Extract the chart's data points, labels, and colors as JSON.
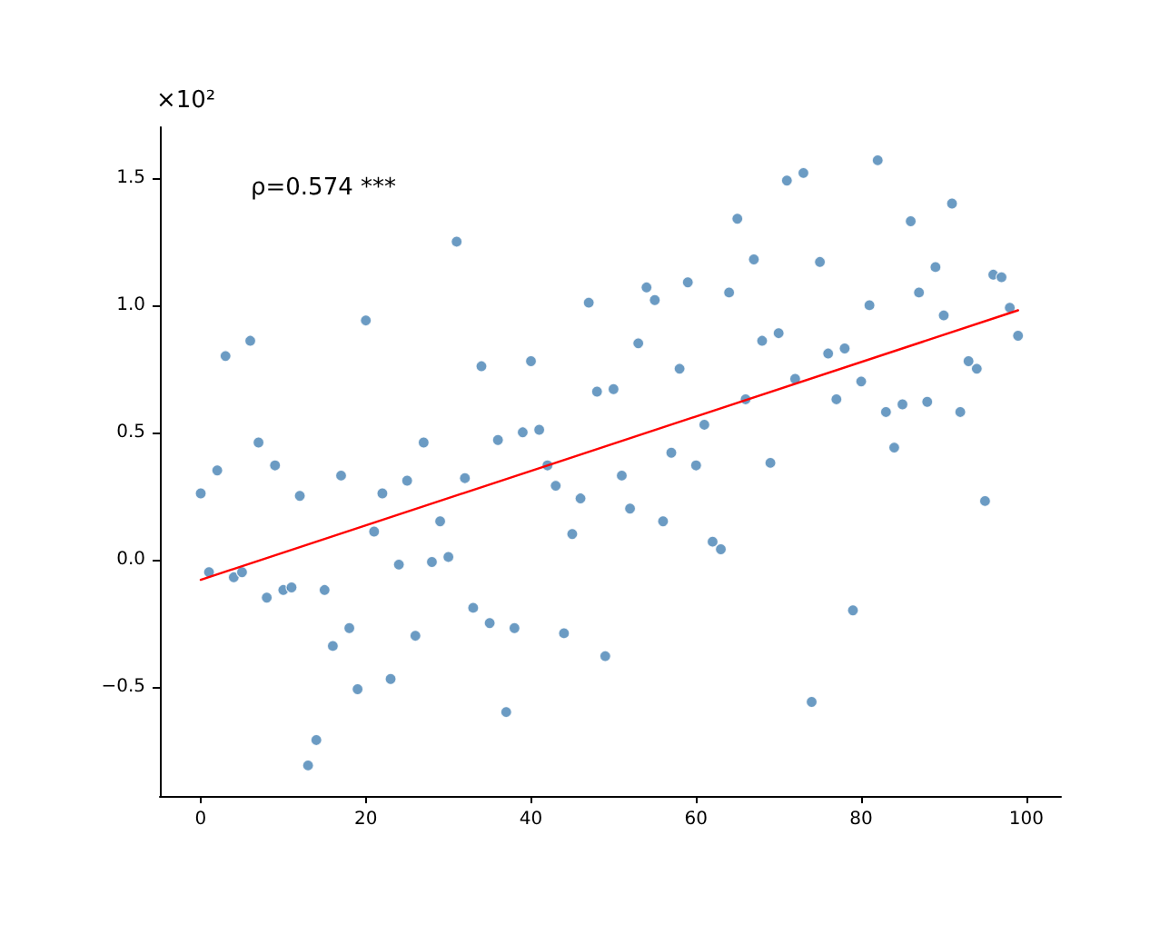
{
  "chart_data": {
    "type": "scatter",
    "ylabel": "×10²",
    "annotations": [
      "ρ=0.574 ***"
    ],
    "xlim": [
      -4.95,
      104.2
    ],
    "xticks": [
      0,
      20,
      40,
      60,
      80,
      100
    ],
    "ylim": [
      -0.93,
      1.7
    ],
    "yticks": [
      {
        "value": -0.5,
        "label": "−0.5"
      },
      {
        "value": 0,
        "label": "0.0"
      },
      0.5,
      {
        "value": 1,
        "label": "1.0"
      },
      1.5
    ],
    "grid": false,
    "series": [
      {
        "color": "#4682b4",
        "marker": "circle",
        "x": [
          0,
          1,
          2,
          3,
          4,
          5,
          6,
          7,
          8,
          9,
          10,
          11,
          12,
          13,
          14,
          15,
          16,
          17,
          18,
          19,
          20,
          21,
          22,
          23,
          24,
          25,
          26,
          27,
          28,
          29,
          30,
          31,
          32,
          33,
          34,
          35,
          36,
          37,
          38,
          39,
          40,
          41,
          42,
          43,
          44,
          45,
          46,
          47,
          48,
          49,
          50,
          51,
          52,
          53,
          54,
          55,
          56,
          57,
          58,
          59,
          60,
          61,
          62,
          63,
          64,
          65,
          66,
          67,
          68,
          69,
          70,
          71,
          72,
          73,
          74,
          75,
          76,
          77,
          78,
          79,
          80,
          81,
          82,
          83,
          84,
          85,
          86,
          87,
          88,
          89,
          90,
          91,
          92,
          93,
          94,
          95,
          96,
          97,
          98,
          99
        ],
        "values": [
          0.26,
          -0.05,
          0.35,
          0.8,
          -0.07,
          -0.05,
          0.86,
          0.46,
          -0.15,
          0.37,
          -0.12,
          -0.11,
          0.25,
          -0.81,
          -0.71,
          -0.12,
          -0.34,
          0.33,
          -0.27,
          -0.51,
          0.94,
          0.11,
          0.26,
          -0.47,
          -0.02,
          0.31,
          -0.3,
          0.46,
          -0.01,
          0.15,
          0.01,
          1.25,
          0.32,
          -0.19,
          0.76,
          -0.25,
          0.47,
          -0.6,
          -0.27,
          0.5,
          0.78,
          0.51,
          0.37,
          0.29,
          -0.29,
          0.1,
          0.24,
          1.01,
          0.66,
          -0.38,
          0.67,
          0.33,
          0.2,
          0.85,
          1.07,
          1.02,
          0.15,
          0.42,
          0.75,
          1.09,
          0.37,
          0.53,
          0.07,
          0.04,
          1.05,
          1.34,
          0.63,
          1.18,
          0.86,
          0.38,
          0.89,
          1.49,
          0.71,
          1.52,
          -0.56,
          1.17,
          0.81,
          0.63,
          0.83,
          -0.2,
          0.7,
          1.0,
          1.57,
          0.58,
          0.44,
          0.61,
          1.33,
          1.05,
          0.62,
          1.15,
          0.96,
          1.4,
          0.58,
          0.78,
          0.75,
          0.23,
          1.12,
          1.11,
          0.99,
          0.88
        ]
      },
      {
        "type": "line",
        "color": "#ff0000",
        "marker": "none",
        "line_style": "solid",
        "x": [
          0,
          99
        ],
        "values": [
          -0.08,
          0.98
        ]
      }
    ]
  }
}
